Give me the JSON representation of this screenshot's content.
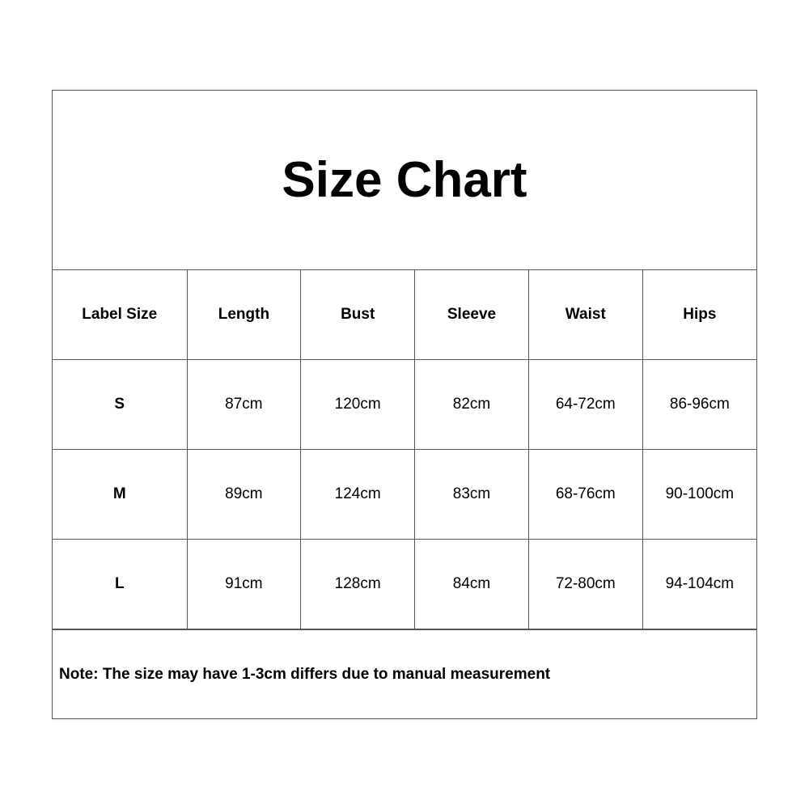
{
  "title": "Size Chart",
  "headers": [
    "Label Size",
    "Length",
    "Bust",
    "Sleeve",
    "Waist",
    "Hips"
  ],
  "rows": [
    [
      "S",
      "87cm",
      "120cm",
      "82cm",
      "64-72cm",
      "86-96cm"
    ],
    [
      "M",
      "89cm",
      "124cm",
      "83cm",
      "68-76cm",
      "90-100cm"
    ],
    [
      "L",
      "91cm",
      "128cm",
      "84cm",
      "72-80cm",
      "94-104cm"
    ]
  ],
  "note": "Note: The size may have 1-3cm differs due to manual measurement"
}
